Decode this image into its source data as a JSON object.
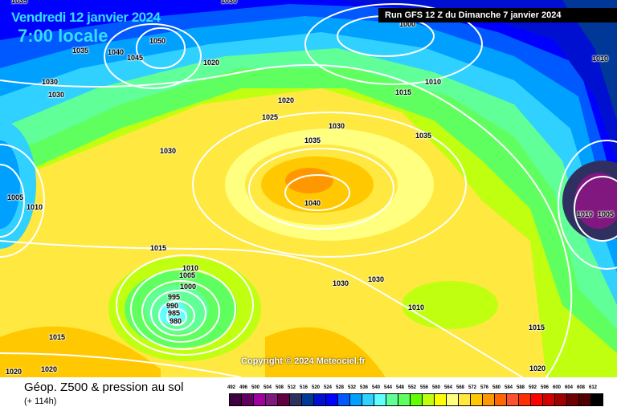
{
  "header": {
    "date": "Vendredi 12 janvier 2024",
    "time": "7:00 locale",
    "run": "Run GFS 12 Z du Dimanche 7 janvier 2024"
  },
  "copyright": "Copyright © 2024 Meteociel.fr",
  "footer": {
    "title": "Géop. Z500 & pression au sol",
    "subtitle": "(+ 114h)"
  },
  "legend": {
    "ticks": [
      "492",
      "496",
      "500",
      "504",
      "508",
      "512",
      "516",
      "520",
      "524",
      "528",
      "532",
      "536",
      "540",
      "544",
      "548",
      "552",
      "556",
      "560",
      "564",
      "568",
      "572",
      "576",
      "580",
      "584",
      "588",
      "592",
      "596",
      "600",
      "604",
      "608",
      "612"
    ],
    "colors": [
      "#400040",
      "#600060",
      "#a000a0",
      "#801880",
      "#600040",
      "#303060",
      "#003898",
      "#0010d0",
      "#0000ff",
      "#0058ff",
      "#00a0ff",
      "#30d0ff",
      "#60ffff",
      "#60ff98",
      "#60ff60",
      "#60ff00",
      "#c0ff10",
      "#ffff00",
      "#ffff80",
      "#ffe840",
      "#ffc800",
      "#ff9800",
      "#ff6800",
      "#ff5030",
      "#ff3000",
      "#ff0000",
      "#d00000",
      "#a00000",
      "#700000",
      "#500000",
      "#000000"
    ]
  },
  "isobar_labels": [
    "1035",
    "1030",
    "1050",
    "1035",
    "1040",
    "1045",
    "1020",
    "1030",
    "1030",
    "1000",
    "1010",
    "1015",
    "1020",
    "1025",
    "1030",
    "1035",
    "1035",
    "1030",
    "1040",
    "1005",
    "1010",
    "1010",
    "1010",
    "1005",
    "1015",
    "1010",
    "1005",
    "1000",
    "995",
    "990",
    "985",
    "980",
    "1030",
    "1030",
    "1010",
    "1015",
    "1015",
    "1020",
    "1020",
    "1020"
  ]
}
